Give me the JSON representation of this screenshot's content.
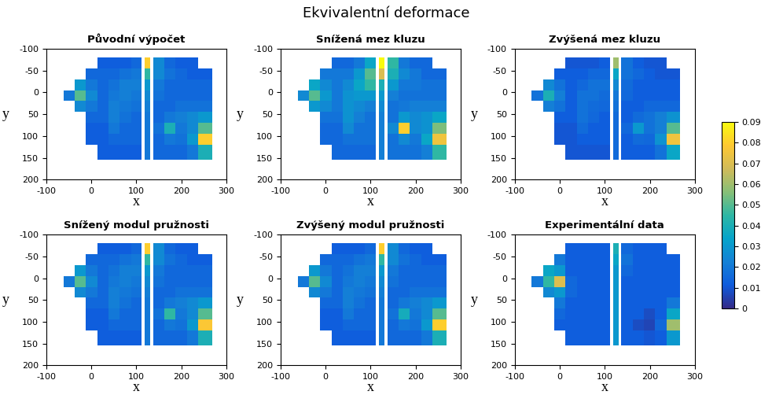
{
  "title": "Ekvivalentní deformace",
  "colorbar": {
    "range": [
      0,
      0.09
    ],
    "ticks": [
      0,
      0.01,
      0.02,
      0.03,
      0.04,
      0.05,
      0.06,
      0.07,
      0.08,
      0.09
    ]
  },
  "chart_data": [
    {
      "type": "heatmap",
      "title": "Původní výpočet",
      "xlabel": "x",
      "ylabel": "y",
      "xlim": [
        -100,
        300
      ],
      "ylim": [
        200,
        -100
      ],
      "xticks": [
        -100,
        0,
        100,
        200,
        300
      ],
      "yticks": [
        -100,
        -50,
        0,
        50,
        100,
        150,
        200
      ],
      "x_edges": [
        -62,
        -37,
        -12,
        13,
        38,
        63,
        88,
        112,
        119,
        131,
        137,
        162,
        187,
        212,
        237,
        268
      ],
      "y_edges": [
        -80,
        -55,
        -30,
        -5,
        20,
        45,
        70,
        95,
        120,
        155
      ],
      "cells": [
        [
          null,
          null,
          null,
          0.012,
          0.012,
          0.012,
          0.015,
          null,
          0.08,
          null,
          0.025,
          0.015,
          0.012,
          0.012,
          null
        ],
        [
          null,
          null,
          0.015,
          0.015,
          0.015,
          0.018,
          0.02,
          null,
          0.045,
          null,
          0.025,
          0.018,
          0.015,
          0.012,
          0.012
        ],
        [
          null,
          0.03,
          0.02,
          0.015,
          0.018,
          0.022,
          0.022,
          null,
          0.03,
          null,
          0.02,
          0.015,
          0.015,
          0.015,
          0.015
        ],
        [
          0.02,
          0.05,
          0.025,
          0.015,
          0.02,
          0.022,
          0.02,
          null,
          0.025,
          null,
          0.018,
          0.015,
          0.015,
          0.015,
          0.015
        ],
        [
          null,
          0.025,
          0.02,
          0.015,
          0.022,
          0.02,
          0.018,
          null,
          0.022,
          null,
          0.015,
          0.015,
          0.018,
          0.018,
          0.018
        ],
        [
          null,
          null,
          0.015,
          0.015,
          0.022,
          0.018,
          0.015,
          null,
          0.02,
          null,
          0.015,
          0.02,
          0.022,
          0.025,
          0.03
        ],
        [
          null,
          null,
          0.012,
          0.012,
          0.02,
          0.015,
          0.015,
          null,
          0.02,
          null,
          0.018,
          0.04,
          0.02,
          0.025,
          0.05
        ],
        [
          null,
          null,
          0.012,
          0.012,
          0.015,
          0.015,
          0.015,
          null,
          0.02,
          null,
          0.015,
          0.02,
          0.018,
          0.03,
          0.08
        ],
        [
          null,
          null,
          null,
          0.012,
          0.012,
          0.012,
          0.012,
          null,
          0.02,
          null,
          0.015,
          0.015,
          0.015,
          0.02,
          0.04
        ]
      ]
    },
    {
      "type": "heatmap",
      "title": "Snížená mez kluzu",
      "xlabel": "x",
      "ylabel": "y",
      "xlim": [
        -100,
        300
      ],
      "ylim": [
        200,
        -100
      ],
      "xticks": [
        -100,
        0,
        100,
        200,
        300
      ],
      "yticks": [
        -100,
        -50,
        0,
        50,
        100,
        150,
        200
      ],
      "x_edges": [
        -62,
        -37,
        -12,
        13,
        38,
        63,
        88,
        112,
        119,
        131,
        137,
        162,
        187,
        212,
        237,
        268
      ],
      "y_edges": [
        -80,
        -55,
        -30,
        -5,
        20,
        45,
        70,
        95,
        120,
        155
      ],
      "cells": [
        [
          null,
          null,
          null,
          0.015,
          0.015,
          0.02,
          0.035,
          null,
          0.09,
          null,
          0.045,
          0.02,
          0.015,
          0.015,
          null
        ],
        [
          null,
          null,
          0.02,
          0.02,
          0.02,
          0.03,
          0.05,
          null,
          0.07,
          null,
          0.04,
          0.025,
          0.02,
          0.015,
          0.015
        ],
        [
          null,
          0.035,
          0.025,
          0.02,
          0.025,
          0.035,
          0.045,
          null,
          0.04,
          null,
          0.03,
          0.02,
          0.02,
          0.018,
          0.018
        ],
        [
          0.025,
          0.05,
          0.03,
          0.02,
          0.028,
          0.03,
          0.03,
          null,
          0.03,
          null,
          0.022,
          0.018,
          0.018,
          0.018,
          0.018
        ],
        [
          null,
          0.03,
          0.025,
          0.02,
          0.028,
          0.025,
          0.022,
          null,
          0.025,
          null,
          0.018,
          0.02,
          0.022,
          0.022,
          0.022
        ],
        [
          null,
          null,
          0.018,
          0.018,
          0.028,
          0.022,
          0.018,
          null,
          0.022,
          null,
          0.018,
          0.03,
          0.025,
          0.028,
          0.035
        ],
        [
          null,
          null,
          0.015,
          0.015,
          0.025,
          0.018,
          0.018,
          null,
          0.022,
          null,
          0.025,
          0.08,
          0.025,
          0.028,
          0.055
        ],
        [
          null,
          null,
          0.015,
          0.015,
          0.018,
          0.018,
          0.018,
          null,
          0.022,
          null,
          0.018,
          0.025,
          0.02,
          0.035,
          0.075
        ],
        [
          null,
          null,
          null,
          0.015,
          0.015,
          0.015,
          0.015,
          null,
          0.022,
          null,
          0.018,
          0.018,
          0.018,
          0.022,
          0.045
        ]
      ]
    },
    {
      "type": "heatmap",
      "title": "Zvýšená mez kluzu",
      "xlabel": "x",
      "ylabel": "y",
      "xlim": [
        -100,
        300
      ],
      "ylim": [
        200,
        -100
      ],
      "xticks": [
        -100,
        0,
        100,
        200,
        300
      ],
      "yticks": [
        -100,
        -50,
        0,
        50,
        100,
        150,
        200
      ],
      "x_edges": [
        -62,
        -37,
        -12,
        13,
        38,
        63,
        88,
        112,
        119,
        131,
        137,
        162,
        187,
        212,
        237,
        268
      ],
      "y_edges": [
        -80,
        -55,
        -30,
        -5,
        20,
        45,
        70,
        95,
        120,
        155
      ],
      "cells": [
        [
          null,
          null,
          null,
          0.01,
          0.01,
          0.01,
          0.012,
          null,
          0.06,
          null,
          0.018,
          0.012,
          0.01,
          0.01,
          null
        ],
        [
          null,
          null,
          0.012,
          0.012,
          0.012,
          0.015,
          0.015,
          null,
          0.035,
          null,
          0.018,
          0.015,
          0.012,
          0.01,
          0.01
        ],
        [
          null,
          0.025,
          0.018,
          0.012,
          0.015,
          0.018,
          0.018,
          null,
          0.025,
          null,
          0.016,
          0.012,
          0.012,
          0.012,
          0.012
        ],
        [
          0.018,
          0.04,
          0.022,
          0.012,
          0.018,
          0.018,
          0.016,
          null,
          0.02,
          null,
          0.015,
          0.012,
          0.012,
          0.012,
          0.012
        ],
        [
          null,
          0.022,
          0.018,
          0.012,
          0.018,
          0.016,
          0.015,
          null,
          0.018,
          null,
          0.012,
          0.012,
          0.015,
          0.015,
          0.015
        ],
        [
          null,
          null,
          0.012,
          0.012,
          0.018,
          0.015,
          0.012,
          null,
          0.016,
          null,
          0.012,
          0.016,
          0.018,
          0.022,
          0.028
        ],
        [
          null,
          null,
          0.01,
          0.01,
          0.016,
          0.012,
          0.012,
          null,
          0.016,
          null,
          0.015,
          0.03,
          0.018,
          0.022,
          0.05
        ],
        [
          null,
          null,
          0.01,
          0.01,
          0.012,
          0.012,
          0.012,
          null,
          0.016,
          null,
          0.012,
          0.016,
          0.015,
          0.028,
          0.075
        ],
        [
          null,
          null,
          null,
          0.01,
          0.01,
          0.01,
          0.01,
          null,
          0.016,
          null,
          0.012,
          0.012,
          0.012,
          0.018,
          0.035
        ]
      ]
    },
    {
      "type": "heatmap",
      "title": "Snížený modul pružnosti",
      "xlabel": "x",
      "ylabel": "y",
      "xlim": [
        -100,
        300
      ],
      "ylim": [
        200,
        -100
      ],
      "xticks": [
        -100,
        0,
        100,
        200,
        300
      ],
      "yticks": [
        -100,
        -50,
        0,
        50,
        100,
        150,
        200
      ],
      "x_edges": [
        -62,
        -37,
        -12,
        13,
        38,
        63,
        88,
        112,
        119,
        131,
        137,
        162,
        187,
        212,
        237,
        268
      ],
      "y_edges": [
        -80,
        -55,
        -30,
        -5,
        20,
        45,
        70,
        95,
        120,
        155
      ],
      "cells": [
        [
          null,
          null,
          null,
          0.012,
          0.012,
          0.012,
          0.015,
          null,
          0.08,
          null,
          0.025,
          0.015,
          0.012,
          0.012,
          null
        ],
        [
          null,
          null,
          0.015,
          0.015,
          0.015,
          0.018,
          0.02,
          null,
          0.045,
          null,
          0.025,
          0.018,
          0.015,
          0.012,
          0.012
        ],
        [
          null,
          0.03,
          0.02,
          0.015,
          0.018,
          0.022,
          0.022,
          null,
          0.03,
          null,
          0.02,
          0.015,
          0.015,
          0.015,
          0.015
        ],
        [
          0.02,
          0.05,
          0.025,
          0.015,
          0.02,
          0.022,
          0.02,
          null,
          0.025,
          null,
          0.018,
          0.015,
          0.015,
          0.015,
          0.015
        ],
        [
          null,
          0.025,
          0.02,
          0.015,
          0.022,
          0.02,
          0.018,
          null,
          0.022,
          null,
          0.015,
          0.015,
          0.018,
          0.018,
          0.018
        ],
        [
          null,
          null,
          0.015,
          0.015,
          0.022,
          0.018,
          0.015,
          null,
          0.02,
          null,
          0.015,
          0.02,
          0.022,
          0.025,
          0.03
        ],
        [
          null,
          null,
          0.012,
          0.012,
          0.02,
          0.015,
          0.015,
          null,
          0.02,
          null,
          0.018,
          0.045,
          0.02,
          0.025,
          0.05
        ],
        [
          null,
          null,
          0.012,
          0.012,
          0.015,
          0.015,
          0.015,
          null,
          0.02,
          null,
          0.015,
          0.02,
          0.018,
          0.03,
          0.078
        ],
        [
          null,
          null,
          null,
          0.012,
          0.012,
          0.012,
          0.012,
          null,
          0.02,
          null,
          0.015,
          0.015,
          0.015,
          0.02,
          0.04
        ]
      ]
    },
    {
      "type": "heatmap",
      "title": "Zvýšený modul pružnosti",
      "xlabel": "x",
      "ylabel": "y",
      "xlim": [
        -100,
        300
      ],
      "ylim": [
        200,
        -100
      ],
      "xticks": [
        -100,
        0,
        100,
        200,
        300
      ],
      "yticks": [
        -100,
        -50,
        0,
        50,
        100,
        150,
        200
      ],
      "x_edges": [
        -62,
        -37,
        -12,
        13,
        38,
        63,
        88,
        112,
        119,
        131,
        137,
        162,
        187,
        212,
        237,
        268
      ],
      "y_edges": [
        -80,
        -55,
        -30,
        -5,
        20,
        45,
        70,
        95,
        120,
        155
      ],
      "cells": [
        [
          null,
          null,
          null,
          0.012,
          0.012,
          0.012,
          0.015,
          null,
          0.08,
          null,
          0.025,
          0.015,
          0.012,
          0.012,
          null
        ],
        [
          null,
          null,
          0.015,
          0.015,
          0.015,
          0.018,
          0.02,
          null,
          0.045,
          null,
          0.025,
          0.018,
          0.015,
          0.012,
          0.012
        ],
        [
          null,
          0.03,
          0.02,
          0.015,
          0.018,
          0.022,
          0.022,
          null,
          0.03,
          null,
          0.02,
          0.015,
          0.015,
          0.015,
          0.015
        ],
        [
          0.02,
          0.05,
          0.025,
          0.015,
          0.02,
          0.022,
          0.02,
          null,
          0.025,
          null,
          0.018,
          0.015,
          0.015,
          0.015,
          0.015
        ],
        [
          null,
          0.025,
          0.02,
          0.015,
          0.022,
          0.02,
          0.018,
          null,
          0.022,
          null,
          0.015,
          0.015,
          0.018,
          0.018,
          0.018
        ],
        [
          null,
          null,
          0.015,
          0.015,
          0.022,
          0.018,
          0.015,
          null,
          0.02,
          null,
          0.015,
          0.02,
          0.022,
          0.025,
          0.03
        ],
        [
          null,
          null,
          0.012,
          0.012,
          0.02,
          0.015,
          0.015,
          null,
          0.02,
          null,
          0.018,
          0.038,
          0.02,
          0.025,
          0.05
        ],
        [
          null,
          null,
          0.012,
          0.012,
          0.015,
          0.015,
          0.015,
          null,
          0.02,
          null,
          0.015,
          0.02,
          0.018,
          0.03,
          0.08
        ],
        [
          null,
          null,
          null,
          0.012,
          0.012,
          0.012,
          0.012,
          null,
          0.02,
          null,
          0.015,
          0.015,
          0.015,
          0.02,
          0.04
        ]
      ]
    },
    {
      "type": "heatmap",
      "title": "Experimentální data",
      "xlabel": "x",
      "ylabel": "y",
      "xlim": [
        -100,
        300
      ],
      "ylim": [
        200,
        -100
      ],
      "xticks": [
        -100,
        0,
        100,
        200,
        300
      ],
      "yticks": [
        -100,
        -50,
        0,
        50,
        100,
        150,
        200
      ],
      "x_edges": [
        -62,
        -37,
        -12,
        13,
        38,
        63,
        88,
        112,
        119,
        131,
        137,
        162,
        187,
        212,
        237,
        268
      ],
      "y_edges": [
        -80,
        -55,
        -30,
        -5,
        20,
        45,
        70,
        95,
        120,
        155
      ],
      "cells": [
        [
          null,
          null,
          null,
          0.012,
          0.012,
          0.012,
          0.012,
          null,
          0.04,
          null,
          0.015,
          0.012,
          0.012,
          0.012,
          null
        ],
        [
          null,
          null,
          0.02,
          0.012,
          0.012,
          0.012,
          0.012,
          null,
          0.035,
          null,
          0.018,
          0.012,
          0.012,
          0.012,
          0.012
        ],
        [
          null,
          0.035,
          0.03,
          0.012,
          0.012,
          0.012,
          0.012,
          null,
          0.03,
          null,
          0.015,
          0.012,
          0.012,
          0.012,
          0.012
        ],
        [
          0.02,
          0.045,
          0.07,
          0.015,
          0.012,
          0.012,
          0.012,
          null,
          0.03,
          null,
          0.012,
          0.012,
          0.012,
          0.012,
          0.012
        ],
        [
          null,
          0.025,
          0.03,
          0.015,
          0.012,
          0.012,
          0.012,
          null,
          0.03,
          null,
          0.012,
          0.012,
          0.012,
          0.012,
          0.012
        ],
        [
          null,
          null,
          0.02,
          0.012,
          0.012,
          0.012,
          0.012,
          null,
          0.03,
          null,
          0.012,
          0.012,
          0.012,
          0.012,
          0.02
        ],
        [
          null,
          null,
          0.015,
          0.012,
          0.012,
          0.012,
          0.012,
          null,
          0.03,
          null,
          0.012,
          0.012,
          0.008,
          0.012,
          0.035
        ],
        [
          null,
          null,
          0.012,
          0.012,
          0.012,
          0.012,
          0.012,
          null,
          0.03,
          null,
          0.012,
          0.008,
          0.006,
          0.015,
          0.06
        ],
        [
          null,
          null,
          null,
          0.012,
          0.012,
          0.012,
          0.012,
          null,
          0.03,
          null,
          0.012,
          0.012,
          0.01,
          0.012,
          0.03
        ]
      ]
    }
  ]
}
